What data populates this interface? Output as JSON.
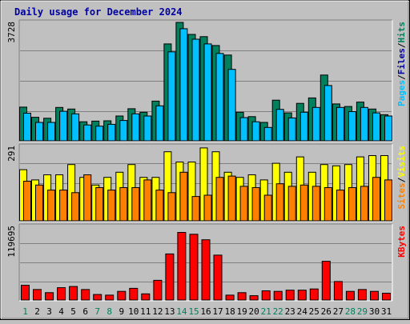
{
  "colors": {
    "background": "#c0c0c0",
    "plot_bg": "#c0c0c0",
    "title": "#0000a0",
    "hits": "#00805c",
    "files": "#00c0ff",
    "pages": "#00e0e0",
    "visits": "#ffff00",
    "sites": "#ff8000",
    "kbytes": "#ff0000",
    "weekday_label": "#000000",
    "weekend_label": "#00805c",
    "axis_text": "#000000",
    "grid": "#808080"
  },
  "chart_data": {
    "type": "bar",
    "title": "Daily usage for December 2024",
    "categories": [
      "1",
      "2",
      "3",
      "4",
      "5",
      "6",
      "7",
      "8",
      "9",
      "10",
      "11",
      "12",
      "13",
      "14",
      "15",
      "16",
      "17",
      "18",
      "19",
      "20",
      "21",
      "22",
      "23",
      "24",
      "25",
      "26",
      "27",
      "28",
      "29",
      "30",
      "31"
    ],
    "weekend_days": [
      "1",
      "7",
      "8",
      "14",
      "15",
      "21",
      "22",
      "28",
      "29"
    ],
    "panels": [
      {
        "id": "hits_files",
        "ymax_label": "3728",
        "ylim": [
          0,
          3728
        ],
        "axis_legend": [
          {
            "text": "Hits",
            "color": "#00805c"
          },
          {
            "text": "/",
            "color": "#000000"
          },
          {
            "text": "Files",
            "color": "#0000a0"
          },
          {
            "text": "/",
            "color": "#000000"
          },
          {
            "text": "Pages",
            "color": "#00c0ff"
          }
        ],
        "series": [
          {
            "name": "Hits",
            "color": "#00805c",
            "values": [
              1060,
              740,
              710,
              1050,
              1000,
              600,
              620,
              630,
              780,
              1010,
              900,
              1250,
              3050,
              3728,
              3350,
              3280,
              3000,
              2700,
              900,
              760,
              580,
              1280,
              880,
              1180,
              1350,
              2070,
              1160,
              1080,
              1220,
              1000,
              820
            ]
          },
          {
            "name": "Files",
            "color": "#00c0ff",
            "values": [
              870,
              580,
              580,
              930,
              850,
              500,
              460,
              520,
              640,
              850,
              780,
              1100,
              2800,
              3530,
              3200,
              3050,
              2750,
              2250,
              730,
              600,
              420,
              990,
              720,
              900,
              1050,
              1740,
              1050,
              920,
              1050,
              880,
              780
            ]
          }
        ]
      },
      {
        "id": "visits_sites",
        "ymax_label": "291",
        "ylim": [
          0,
          291
        ],
        "axis_legend": [
          {
            "text": "Visits",
            "color": "#ffff00"
          },
          {
            "text": "/",
            "color": "#000000"
          },
          {
            "text": "Sites",
            "color": "#ff8000"
          }
        ],
        "series": [
          {
            "name": "Visits",
            "color": "#ffff00",
            "values": [
              200,
              160,
              180,
              180,
              220,
              170,
              140,
              170,
              190,
              220,
              170,
              170,
              270,
              230,
              230,
              285,
              270,
              190,
              170,
              180,
              160,
              225,
              190,
              250,
              190,
              220,
              215,
              220,
              250,
              255,
              255
            ]
          },
          {
            "name": "Sites",
            "color": "#ff8000",
            "values": [
              155,
              140,
              120,
              120,
              110,
              180,
              130,
              120,
              130,
              130,
              160,
              120,
              110,
              190,
              95,
              100,
              170,
              175,
              135,
              130,
              100,
              145,
              135,
              140,
              135,
              130,
              120,
              130,
              135,
              170,
              160
            ]
          }
        ]
      },
      {
        "id": "kbytes",
        "ymax_label": "119695",
        "ylim": [
          0,
          119695
        ],
        "axis_legend": [
          {
            "text": "KBytes",
            "color": "#ff0000"
          }
        ],
        "series": [
          {
            "name": "KBytes",
            "color": "#ff0000",
            "values": [
              24000,
              17000,
              12000,
              20000,
              22000,
              17000,
              9000,
              8000,
              14000,
              19000,
              10000,
              32000,
              75000,
              110000,
              107000,
              98000,
              73000,
              8000,
              12000,
              7000,
              15000,
              14000,
              16000,
              16000,
              18000,
              63000,
              30000,
              14000,
              17000,
              14000,
              11000
            ]
          }
        ]
      }
    ]
  }
}
